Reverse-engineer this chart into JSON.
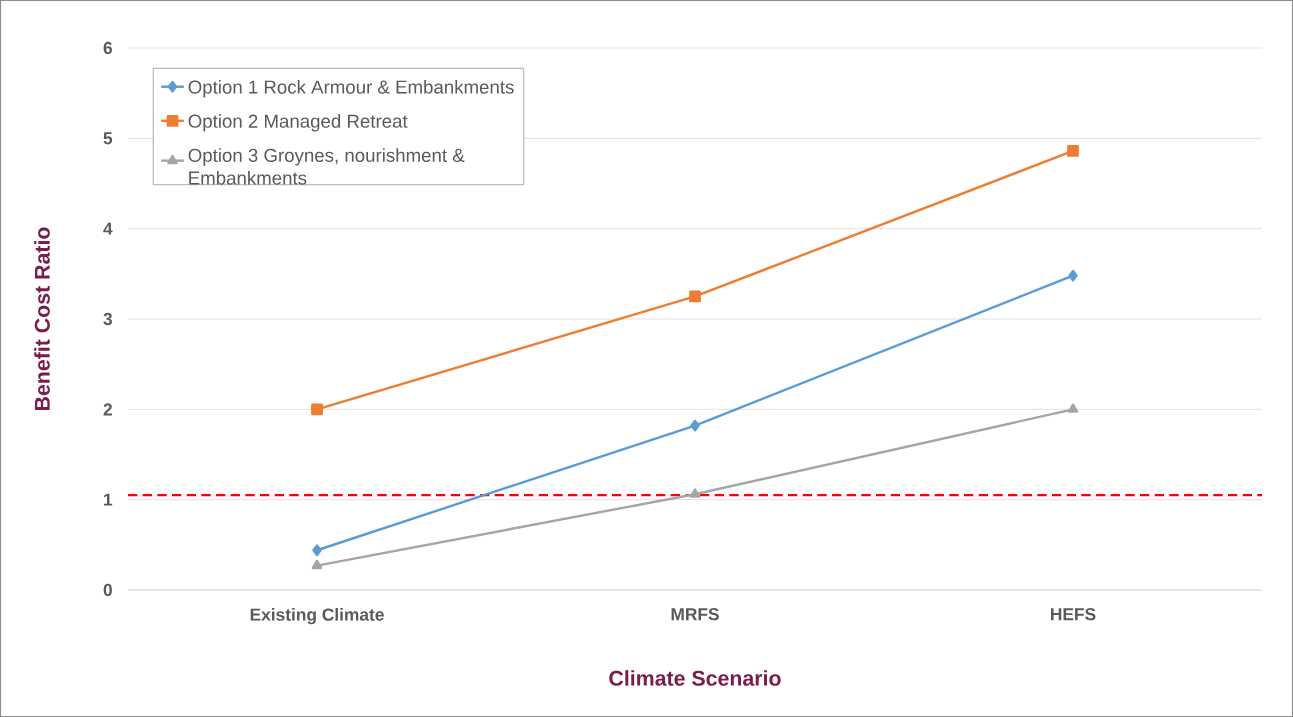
{
  "chart_data": {
    "type": "line",
    "xlabel": "Climate Scenario",
    "ylabel": "Benefit Cost Ratio",
    "categories": [
      "Existing Climate",
      "MRFS",
      "HEFS"
    ],
    "series": [
      {
        "name": "Option 1 Rock Armour & Embankments",
        "color": "#5b9bd5",
        "marker": "diamond",
        "values": [
          0.44,
          1.82,
          3.48
        ]
      },
      {
        "name": "Option 2 Managed Retreat",
        "color": "#ed7d31",
        "marker": "square",
        "values": [
          2.0,
          3.25,
          4.86
        ]
      },
      {
        "name": "Option 3 Groynes, nourishment & Embankments",
        "color": "#a5a5a5",
        "marker": "triangle",
        "values": [
          0.27,
          1.06,
          2.0
        ]
      }
    ],
    "ylim": [
      0,
      6
    ],
    "yticks": [
      0,
      1,
      2,
      3,
      4,
      5,
      6
    ],
    "grid": "y",
    "legend": "top left",
    "ref_lines": [
      {
        "axis": "y",
        "value": 1.05,
        "color": "#ff0000",
        "line_style": "dashed"
      }
    ]
  }
}
